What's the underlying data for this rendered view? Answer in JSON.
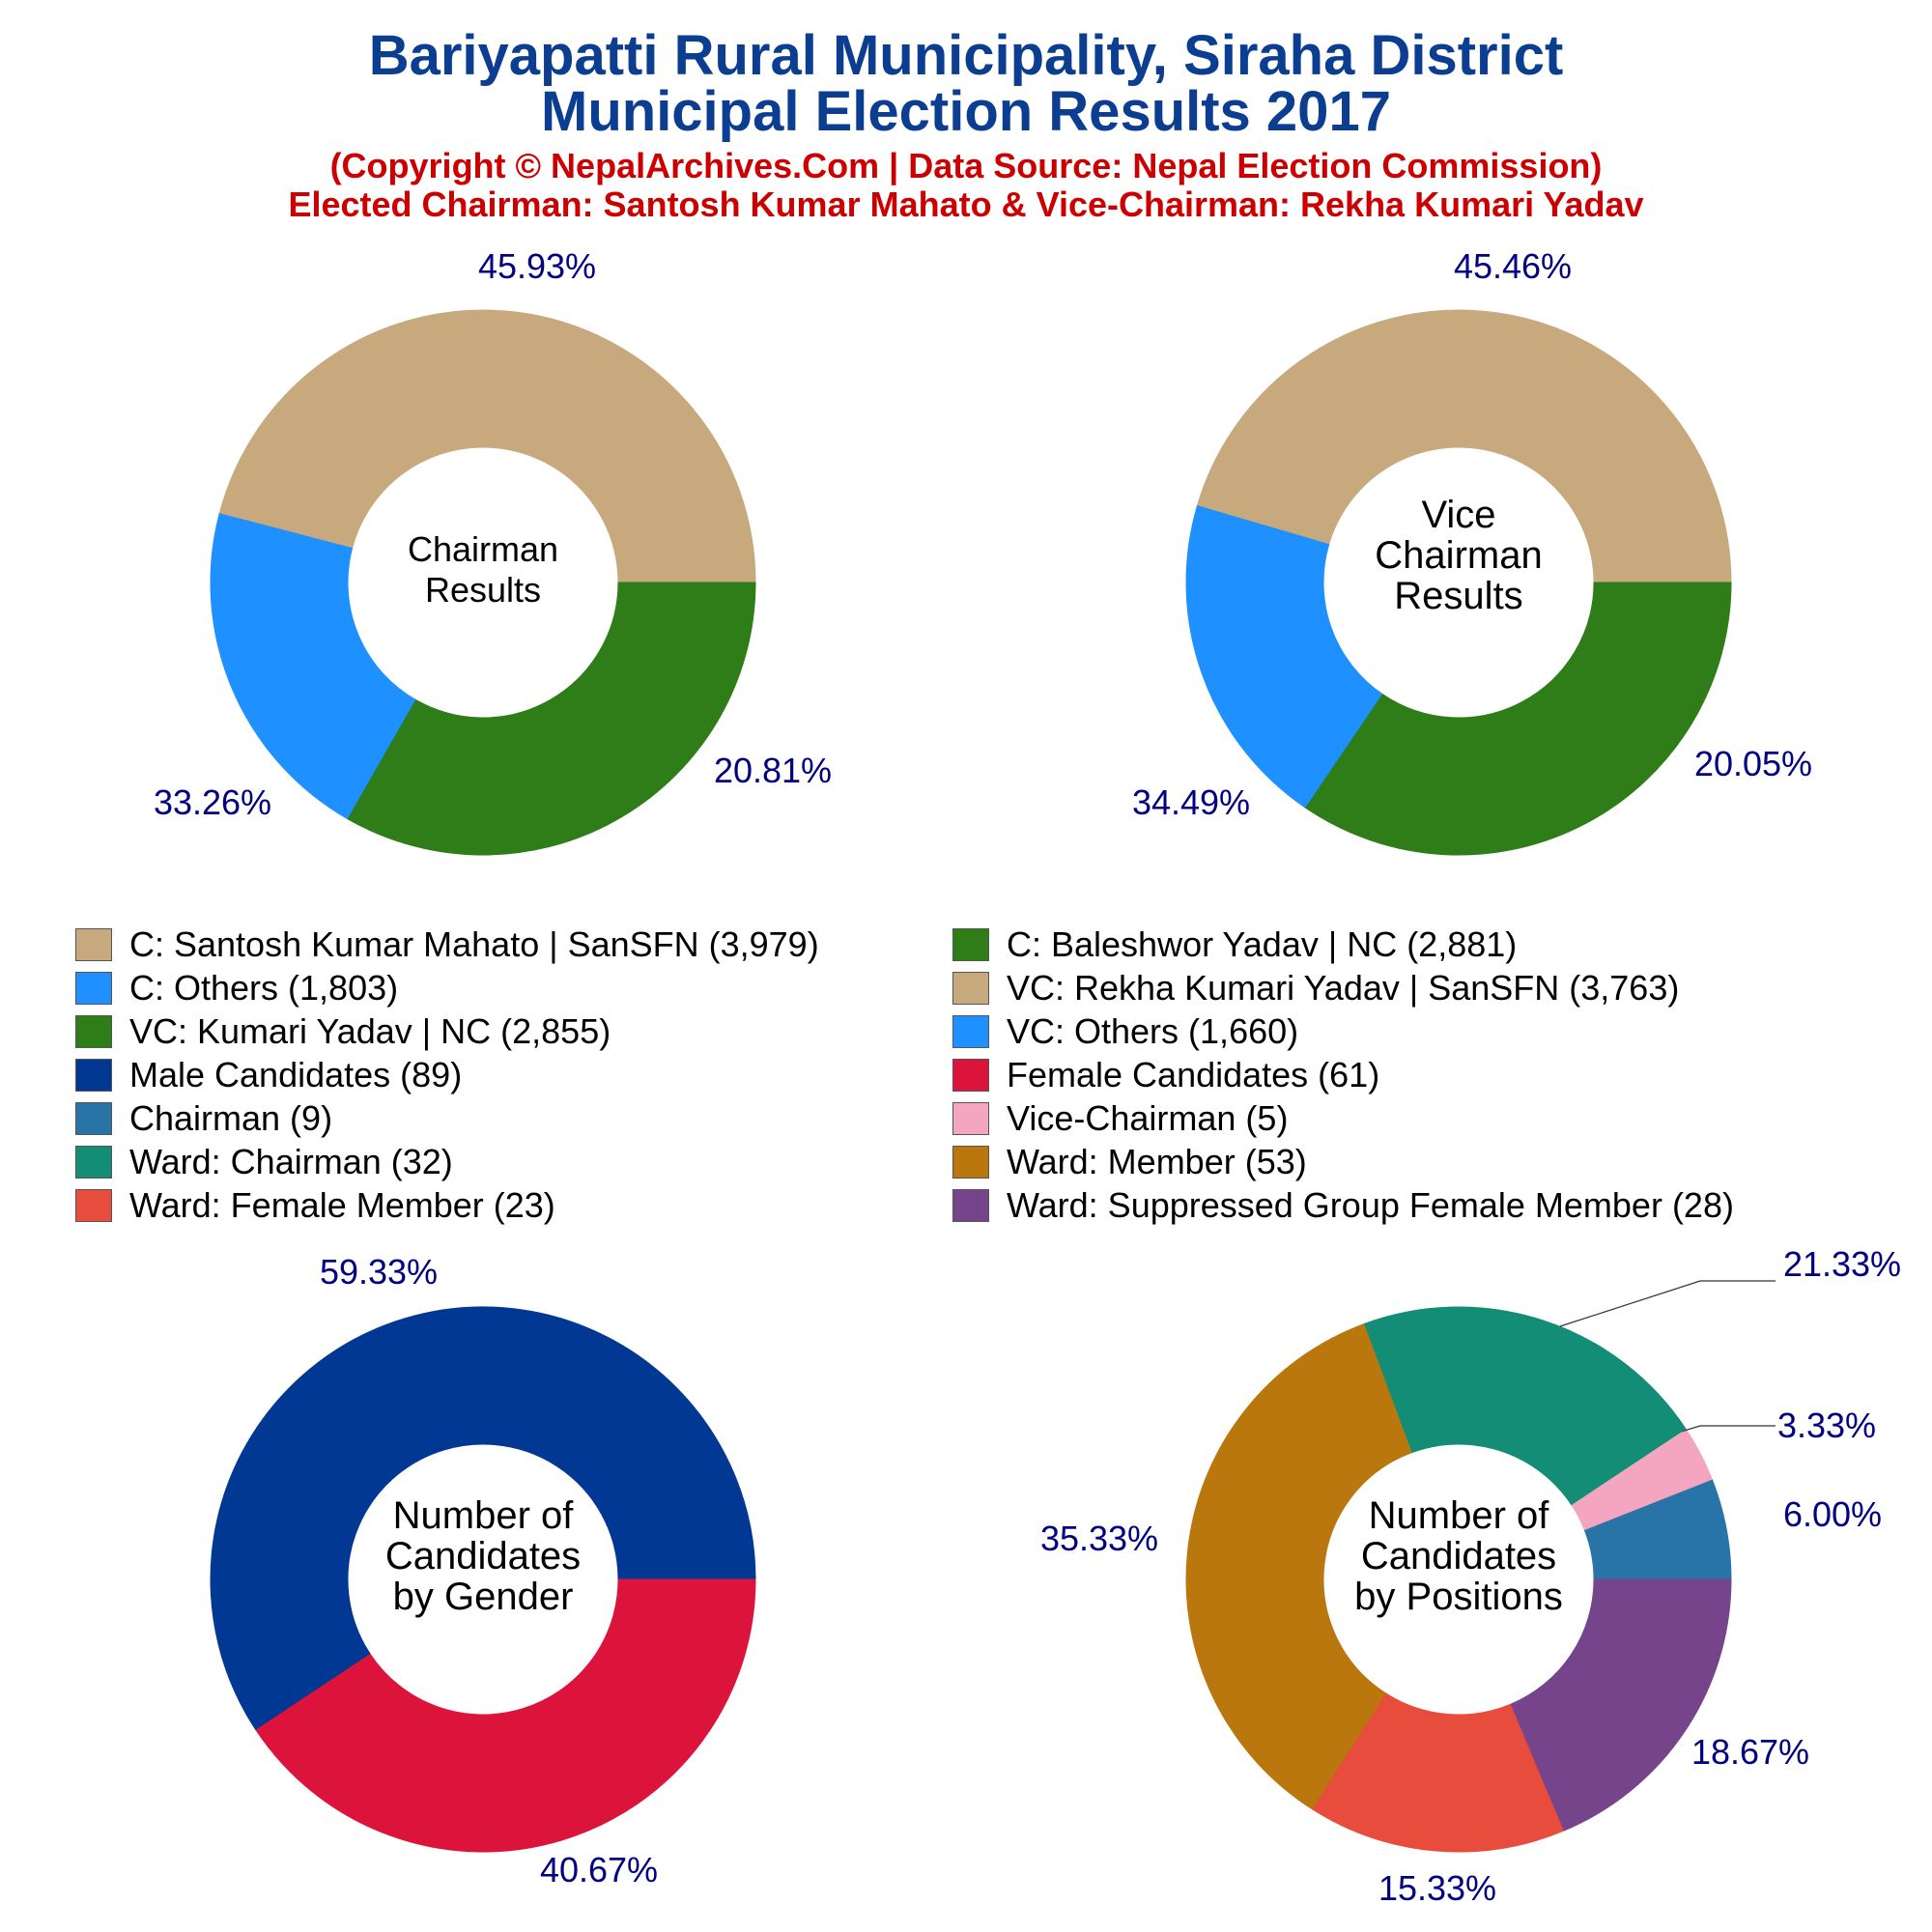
{
  "header": {
    "title_line1": "Bariyapatti Rural Municipality, Siraha District",
    "title_line2": "Municipal Election Results 2017",
    "subtitle_line1": "(Copyright © NepalArchives.Com | Data Source: Nepal Election Commission)",
    "subtitle_line2": "Elected Chairman: Santosh Kumar Mahato & Vice-Chairman: Rekha Kumari Yadav"
  },
  "chart_data": [
    {
      "type": "pie",
      "center_label": [
        "Chairman",
        "Results"
      ],
      "slices": [
        {
          "label": "C: Santosh Kumar Mahato | SanSFN",
          "value": 3979,
          "percent": "45.93%",
          "color": "#c8a97e"
        },
        {
          "label": "C: Others",
          "value": 1803,
          "percent": "20.81%",
          "color": "#1e90ff"
        },
        {
          "label": "C: Baleshwor Yadav | NC",
          "value": 2881,
          "percent": "33.26%",
          "color": "#2e7d18"
        }
      ]
    },
    {
      "type": "pie",
      "center_label": [
        "Vice",
        "Chairman",
        "Results"
      ],
      "slices": [
        {
          "label": "VC: Rekha Kumari Yadav | SanSFN",
          "value": 3763,
          "percent": "45.46%",
          "color": "#c8a97e"
        },
        {
          "label": "VC: Others",
          "value": 1660,
          "percent": "20.05%",
          "color": "#1e90ff"
        },
        {
          "label": "VC: Kumari Yadav | NC",
          "value": 2855,
          "percent": "34.49%",
          "color": "#2e7d18"
        }
      ]
    },
    {
      "type": "pie",
      "center_label": [
        "Number of",
        "Candidates",
        "by Gender"
      ],
      "slices": [
        {
          "label": "Male Candidates",
          "value": 89,
          "percent": "59.33%",
          "color": "#003893"
        },
        {
          "label": "Female Candidates",
          "value": 61,
          "percent": "40.67%",
          "color": "#dc143c"
        }
      ]
    },
    {
      "type": "pie",
      "center_label": [
        "Number of",
        "Candidates",
        "by Positions"
      ],
      "slices": [
        {
          "label": "Chairman",
          "value": 9,
          "percent": "6.00%",
          "color": "#2874a6"
        },
        {
          "label": "Vice-Chairman",
          "value": 5,
          "percent": "3.33%",
          "color": "#f4a6c0"
        },
        {
          "label": "Ward: Chairman",
          "value": 32,
          "percent": "21.33%",
          "color": "#138d75"
        },
        {
          "label": "Ward: Member",
          "value": 53,
          "percent": "35.33%",
          "color": "#b9770e"
        },
        {
          "label": "Ward: Female Member",
          "value": 23,
          "percent": "15.33%",
          "color": "#e74c3c"
        },
        {
          "label": "Ward: Suppressed Group Female Member",
          "value": 28,
          "percent": "18.67%",
          "color": "#76448a"
        }
      ]
    }
  ],
  "legend": [
    {
      "label": "C: Santosh Kumar Mahato | SanSFN (3,979)",
      "color": "#c8a97e"
    },
    {
      "label": "C: Baleshwor Yadav | NC (2,881)",
      "color": "#2e7d18"
    },
    {
      "label": "C: Others (1,803)",
      "color": "#1e90ff"
    },
    {
      "label": "VC: Rekha Kumari Yadav | SanSFN (3,763)",
      "color": "#c8a97e"
    },
    {
      "label": "VC: Kumari Yadav | NC (2,855)",
      "color": "#2e7d18"
    },
    {
      "label": "VC: Others (1,660)",
      "color": "#1e90ff"
    },
    {
      "label": "Male Candidates (89)",
      "color": "#003893"
    },
    {
      "label": "Female Candidates (61)",
      "color": "#dc143c"
    },
    {
      "label": "Chairman (9)",
      "color": "#2874a6"
    },
    {
      "label": "Vice-Chairman (5)",
      "color": "#f4a6c0"
    },
    {
      "label": "Ward: Chairman (32)",
      "color": "#138d75"
    },
    {
      "label": "Ward: Member (53)",
      "color": "#b9770e"
    },
    {
      "label": "Ward: Female Member (23)",
      "color": "#e74c3c"
    },
    {
      "label": "Ward: Suppressed Group Female Member (28)",
      "color": "#76448a"
    }
  ]
}
